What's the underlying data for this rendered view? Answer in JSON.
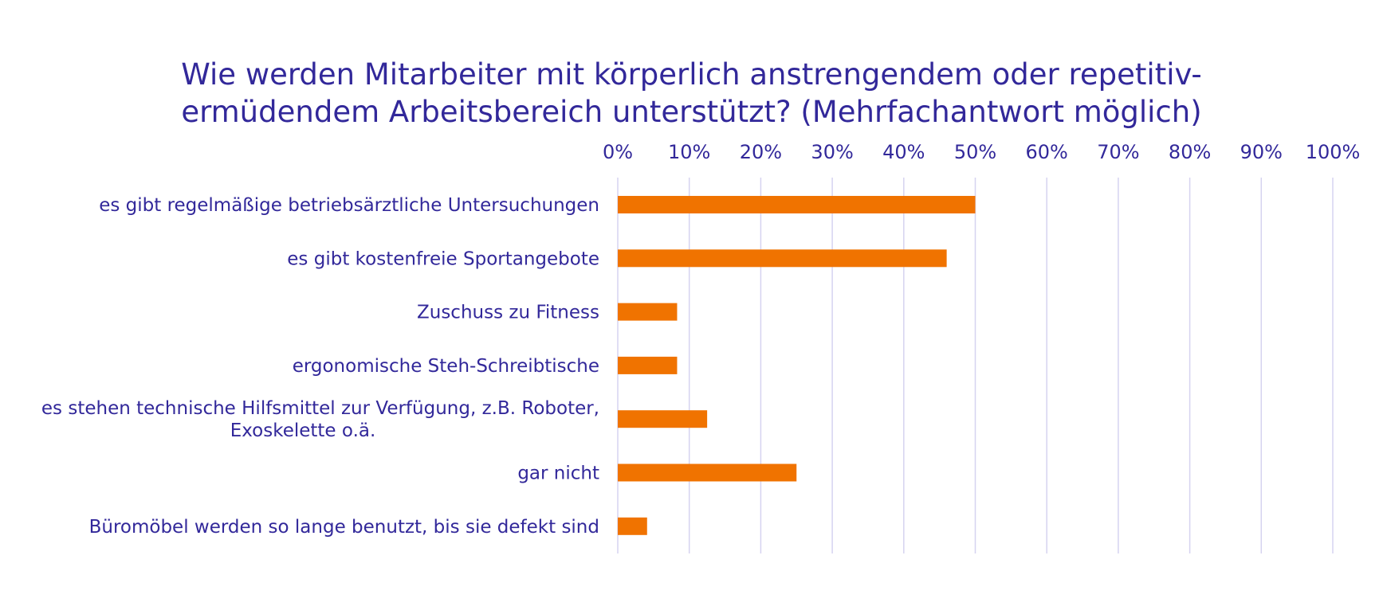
{
  "chart_data": {
    "type": "bar",
    "orientation": "horizontal",
    "title_lines": [
      "Wie werden Mitarbeiter mit körperlich anstrengendem oder repetitiv-",
      "ermüdendem Arbeitsbereich unterstützt? (Mehrfachantwort möglich)"
    ],
    "categories": [
      [
        "es gibt regelmäßige betriebsärztliche Untersuchungen"
      ],
      [
        "es gibt kostenfreie Sportangebote"
      ],
      [
        "Zuschuss zu Fitness"
      ],
      [
        "ergonomische Steh-Schreibtische"
      ],
      [
        "es stehen technische Hilfsmittel zur Verfügung, z.B. Roboter,",
        "Exoskelette o.ä."
      ],
      [
        "gar nicht"
      ],
      [
        "Büromöbel werden so lange benutzt, bis sie defekt sind"
      ]
    ],
    "values": [
      50,
      46,
      8.3,
      8.3,
      12.5,
      25,
      4.1
    ],
    "xlim": [
      0,
      100
    ],
    "x_ticks": [
      0,
      10,
      20,
      30,
      40,
      50,
      60,
      70,
      80,
      90,
      100
    ],
    "tick_suffix": "%",
    "axis_position": "top",
    "grid": true,
    "colors": {
      "bar": "#F07300",
      "text": "#32289A",
      "grid": "#D6D3F0"
    }
  }
}
